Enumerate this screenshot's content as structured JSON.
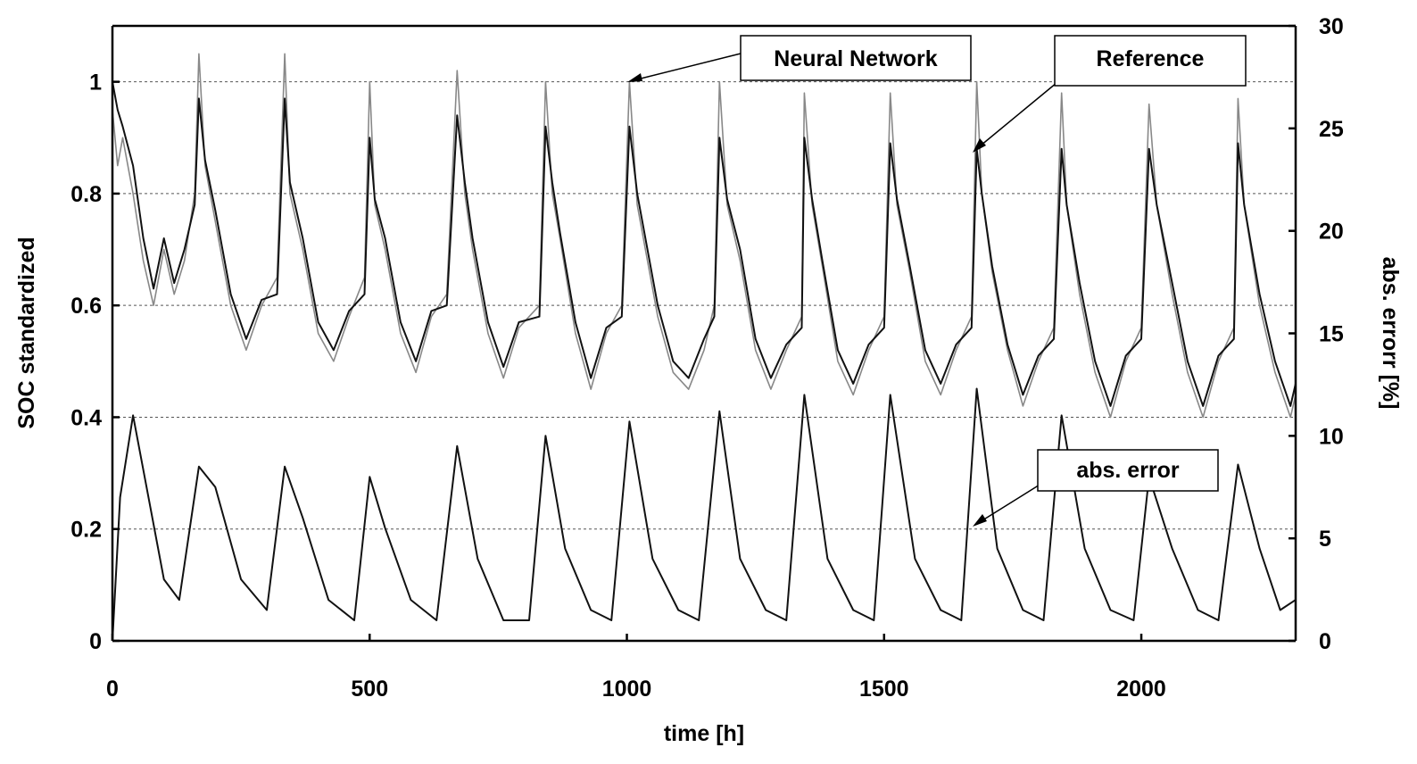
{
  "chart_data": {
    "type": "line",
    "xlabel": "time [h]",
    "ylabel_left": "SOC standardized",
    "ylabel_right": "abs. errorr [%]",
    "x_range": [
      0,
      2300
    ],
    "y_left_range": [
      0,
      1.1
    ],
    "y_right_range": [
      0,
      30
    ],
    "x_ticks": [
      "0",
      "500",
      "1000",
      "1500",
      "2000"
    ],
    "y_left_ticks": [
      "0",
      "0.2",
      "0.4",
      "0.6",
      "0.8",
      "1"
    ],
    "y_right_ticks": [
      "0",
      "5",
      "10",
      "15",
      "20",
      "25",
      "30"
    ],
    "grid": "horizontal dashed",
    "annotations": [
      {
        "label": "Neural Network",
        "target": [
          1005,
          1.0
        ]
      },
      {
        "label": "Reference",
        "target": [
          1680,
          0.88
        ]
      },
      {
        "label": "abs. error",
        "target": [
          1680,
          0.205
        ]
      }
    ],
    "series": [
      {
        "name": "Neural Network",
        "axis": "left",
        "color": "#888888",
        "x": [
          0,
          10,
          20,
          40,
          60,
          80,
          100,
          120,
          140,
          160,
          168,
          180,
          200,
          230,
          260,
          290,
          320,
          335,
          345,
          370,
          400,
          430,
          460,
          490,
          500,
          510,
          530,
          560,
          590,
          620,
          650,
          670,
          685,
          700,
          730,
          760,
          790,
          830,
          842,
          855,
          870,
          900,
          930,
          960,
          990,
          1005,
          1020,
          1040,
          1060,
          1090,
          1120,
          1150,
          1170,
          1180,
          1195,
          1220,
          1250,
          1280,
          1310,
          1340,
          1345,
          1360,
          1380,
          1410,
          1440,
          1470,
          1500,
          1512,
          1525,
          1550,
          1580,
          1610,
          1640,
          1670,
          1680,
          1690,
          1710,
          1740,
          1770,
          1800,
          1830,
          1845,
          1855,
          1880,
          1910,
          1940,
          1970,
          2000,
          2015,
          2030,
          2060,
          2090,
          2120,
          2150,
          2180,
          2188,
          2200,
          2230,
          2260,
          2290,
          2300
        ],
        "y": [
          0.95,
          0.85,
          0.9,
          0.8,
          0.68,
          0.6,
          0.7,
          0.62,
          0.68,
          0.8,
          1.05,
          0.85,
          0.75,
          0.6,
          0.52,
          0.6,
          0.65,
          1.05,
          0.8,
          0.7,
          0.55,
          0.5,
          0.58,
          0.65,
          1.0,
          0.78,
          0.7,
          0.55,
          0.48,
          0.58,
          0.62,
          1.02,
          0.8,
          0.7,
          0.55,
          0.47,
          0.56,
          0.6,
          1.0,
          0.8,
          0.72,
          0.55,
          0.45,
          0.55,
          0.6,
          1.0,
          0.78,
          0.68,
          0.58,
          0.48,
          0.45,
          0.52,
          0.6,
          1.0,
          0.78,
          0.68,
          0.52,
          0.45,
          0.52,
          0.58,
          0.98,
          0.78,
          0.67,
          0.5,
          0.44,
          0.52,
          0.58,
          0.98,
          0.78,
          0.66,
          0.5,
          0.44,
          0.52,
          0.58,
          1.0,
          0.8,
          0.66,
          0.52,
          0.42,
          0.5,
          0.56,
          0.98,
          0.78,
          0.62,
          0.48,
          0.4,
          0.5,
          0.56,
          0.96,
          0.78,
          0.62,
          0.48,
          0.4,
          0.5,
          0.56,
          0.97,
          0.78,
          0.6,
          0.48,
          0.4,
          0.44
        ]
      },
      {
        "name": "Reference",
        "axis": "left",
        "color": "#111111",
        "x": [
          0,
          10,
          20,
          40,
          60,
          80,
          100,
          120,
          140,
          160,
          168,
          180,
          200,
          230,
          260,
          290,
          320,
          335,
          345,
          370,
          400,
          430,
          460,
          490,
          500,
          510,
          530,
          560,
          590,
          620,
          650,
          670,
          685,
          700,
          730,
          760,
          790,
          830,
          842,
          855,
          870,
          900,
          930,
          960,
          990,
          1005,
          1020,
          1040,
          1060,
          1090,
          1120,
          1150,
          1170,
          1180,
          1195,
          1220,
          1250,
          1280,
          1310,
          1340,
          1345,
          1360,
          1380,
          1410,
          1440,
          1470,
          1500,
          1512,
          1525,
          1550,
          1580,
          1610,
          1640,
          1670,
          1680,
          1690,
          1710,
          1740,
          1770,
          1800,
          1830,
          1845,
          1855,
          1880,
          1910,
          1940,
          1970,
          2000,
          2015,
          2030,
          2060,
          2090,
          2120,
          2150,
          2180,
          2188,
          2200,
          2230,
          2260,
          2290,
          2300
        ],
        "y": [
          1.0,
          0.95,
          0.92,
          0.85,
          0.72,
          0.63,
          0.72,
          0.64,
          0.7,
          0.78,
          0.97,
          0.86,
          0.77,
          0.62,
          0.54,
          0.61,
          0.62,
          0.97,
          0.82,
          0.72,
          0.57,
          0.52,
          0.59,
          0.62,
          0.9,
          0.79,
          0.72,
          0.57,
          0.5,
          0.59,
          0.6,
          0.94,
          0.82,
          0.72,
          0.57,
          0.49,
          0.57,
          0.58,
          0.92,
          0.82,
          0.73,
          0.57,
          0.47,
          0.56,
          0.58,
          0.92,
          0.8,
          0.7,
          0.6,
          0.5,
          0.47,
          0.54,
          0.58,
          0.9,
          0.79,
          0.7,
          0.54,
          0.47,
          0.53,
          0.56,
          0.9,
          0.79,
          0.68,
          0.52,
          0.46,
          0.53,
          0.56,
          0.89,
          0.79,
          0.67,
          0.52,
          0.46,
          0.53,
          0.56,
          0.88,
          0.8,
          0.67,
          0.53,
          0.44,
          0.51,
          0.54,
          0.88,
          0.78,
          0.64,
          0.5,
          0.42,
          0.51,
          0.54,
          0.88,
          0.78,
          0.64,
          0.5,
          0.42,
          0.51,
          0.54,
          0.89,
          0.78,
          0.62,
          0.5,
          0.42,
          0.46
        ]
      },
      {
        "name": "abs. error",
        "axis": "right",
        "color": "#111111",
        "x": [
          0,
          15,
          40,
          70,
          100,
          130,
          168,
          200,
          250,
          300,
          335,
          370,
          420,
          470,
          500,
          530,
          580,
          630,
          670,
          710,
          760,
          810,
          842,
          880,
          930,
          970,
          1005,
          1050,
          1100,
          1140,
          1180,
          1220,
          1270,
          1310,
          1345,
          1390,
          1440,
          1480,
          1512,
          1560,
          1610,
          1650,
          1680,
          1720,
          1770,
          1810,
          1845,
          1890,
          1940,
          1985,
          2015,
          2060,
          2110,
          2150,
          2188,
          2230,
          2270,
          2300
        ],
        "y": [
          0,
          7,
          11,
          7,
          3,
          2,
          8.5,
          7.5,
          3,
          1.5,
          8.5,
          6,
          2,
          1,
          8,
          5.5,
          2,
          1,
          9.5,
          4,
          1,
          1,
          10,
          4.5,
          1.5,
          1,
          10.7,
          4,
          1.5,
          1,
          11.2,
          4,
          1.5,
          1,
          12,
          4,
          1.5,
          1,
          12,
          4,
          1.5,
          1,
          12.3,
          4.5,
          1.5,
          1,
          11,
          4.5,
          1.5,
          1,
          8,
          4.5,
          1.5,
          1,
          8.6,
          4.5,
          1.5,
          2
        ]
      }
    ]
  }
}
